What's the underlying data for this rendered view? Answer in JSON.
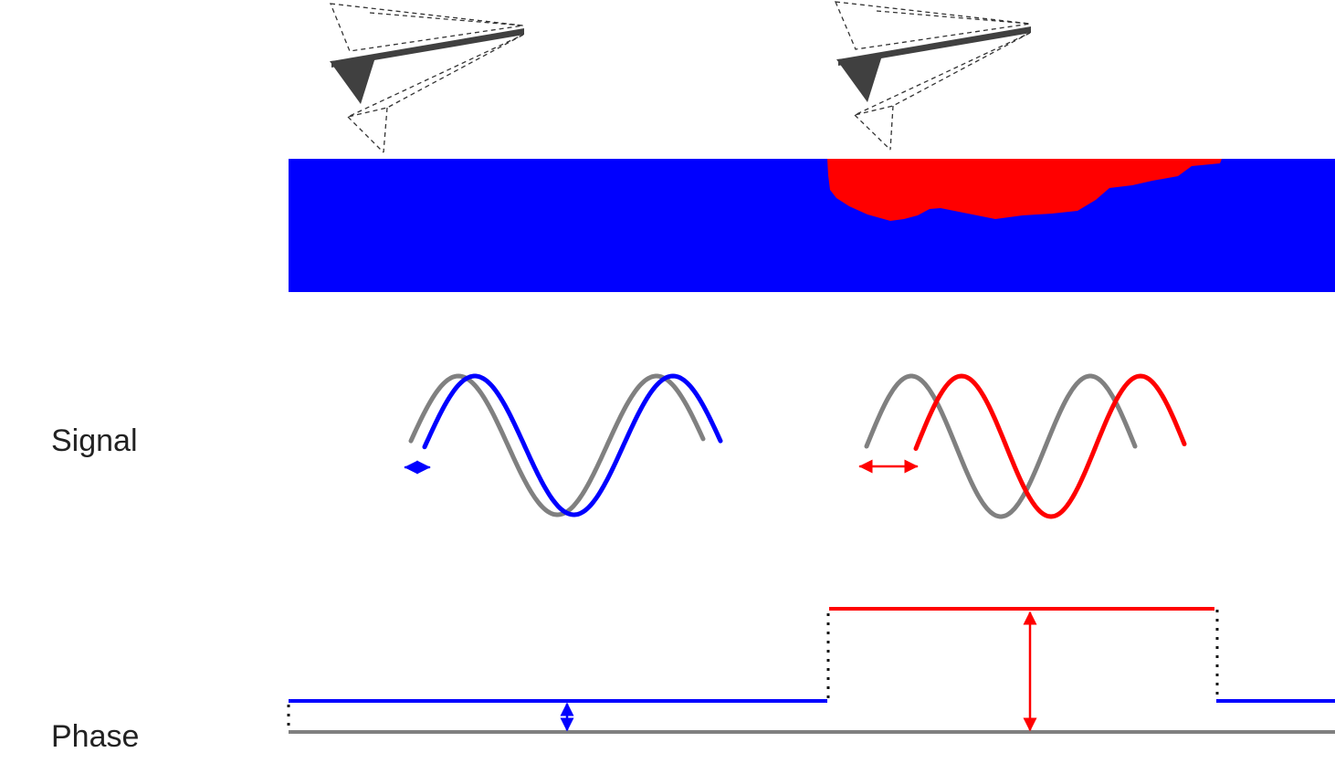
{
  "labels": {
    "signal": "Signal",
    "phase": "Phase"
  },
  "colors": {
    "substrate": "#0000ff",
    "domain": "#ff0000",
    "reference": "#808080",
    "cantilever": "#404040",
    "outline": "#333333"
  },
  "icons": {
    "cantilever": "afm-cantilever-tip-icon",
    "deflection": "dashed-deflected-cantilever-outline"
  },
  "signals": [
    {
      "region": "substrate",
      "color_key": "substrate",
      "phase_shift": "small"
    },
    {
      "region": "domain",
      "color_key": "domain",
      "phase_shift": "large"
    }
  ],
  "phase_levels": {
    "reference": 0,
    "substrate": 1,
    "domain": 4
  }
}
